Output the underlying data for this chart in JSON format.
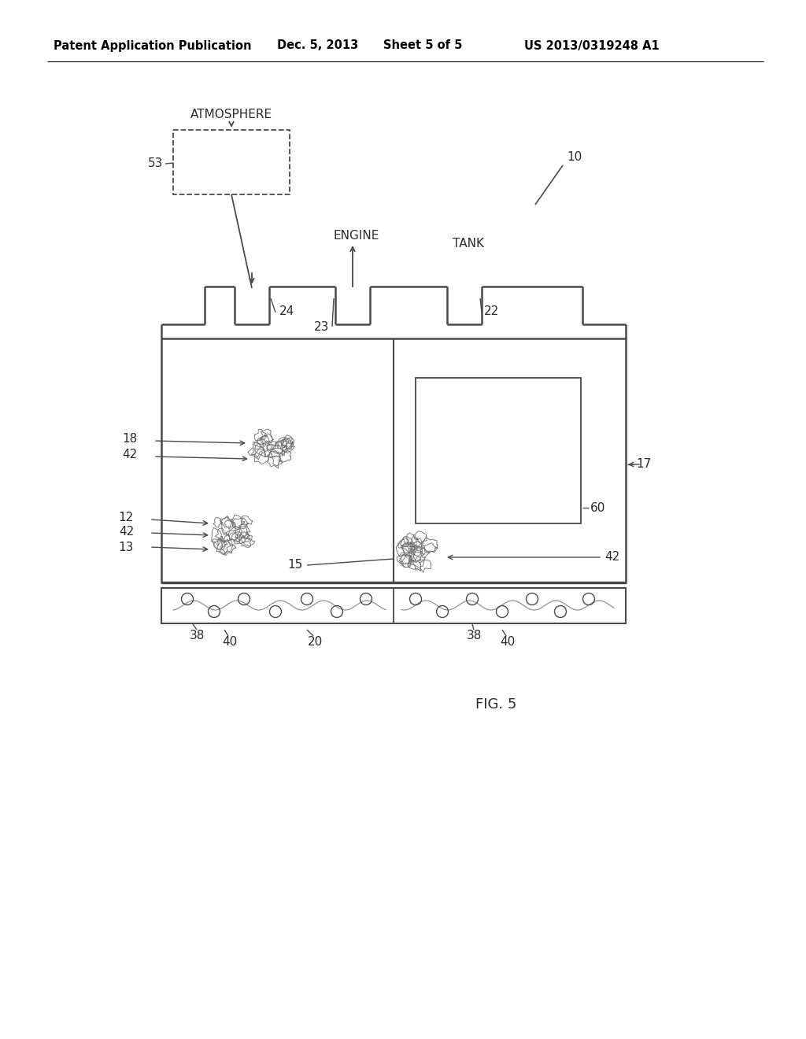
{
  "bg_color": "#ffffff",
  "line_color": "#4a4a4a",
  "text_color": "#2a2a2a",
  "header_left": "Patent Application Publication",
  "header_date": "Dec. 5, 2013",
  "header_sheet": "Sheet 5 of 5",
  "header_patent": "US 2013/0319248 A1",
  "fig_label": "FIG. 5",
  "label_10": "10",
  "label_17": "17",
  "label_18": "18",
  "label_22": "22",
  "label_23": "23",
  "label_24": "24",
  "label_53": "53",
  "label_60": "60",
  "label_42a": "42",
  "label_42b": "42",
  "label_42c": "42",
  "label_12": "12",
  "label_13": "13",
  "label_15": "15",
  "label_20": "20",
  "label_38a": "38",
  "label_38b": "38",
  "label_40a": "40",
  "label_40b": "40",
  "label_atm": "ATMOSPHERE",
  "label_engine": "ENGINE",
  "label_tank": "TANK"
}
